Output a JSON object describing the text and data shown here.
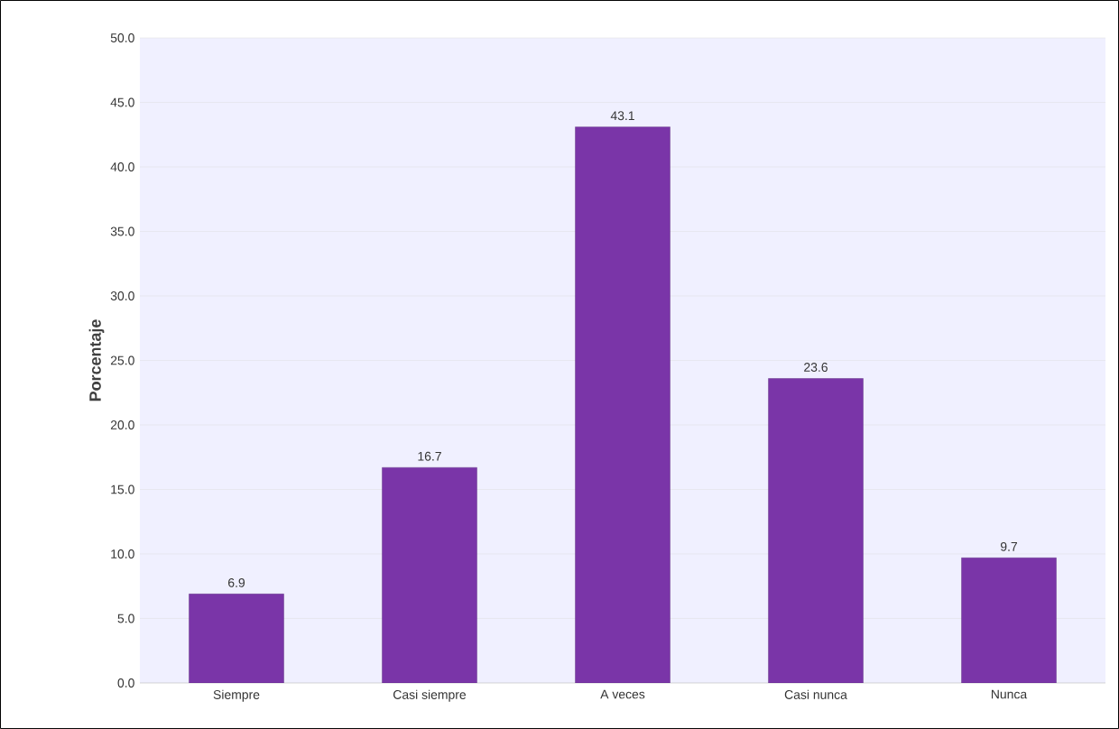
{
  "chart_data": {
    "type": "bar",
    "ylabel": "Porcentaje",
    "categories": [
      "Siempre",
      "Casi siempre",
      "A veces",
      "Casi nunca",
      "Nunca"
    ],
    "values": [
      6.9,
      16.7,
      43.1,
      23.6,
      9.7
    ],
    "value_labels": [
      "6.9",
      "16.7",
      "43.1",
      "23.6",
      "9.7"
    ],
    "color": "#7a35a8",
    "ylim": [
      0,
      50
    ],
    "yticks": [
      {
        "value": 0,
        "label": "0.0"
      },
      {
        "value": 5,
        "label": "5.0"
      },
      {
        "value": 10,
        "label": "10.0"
      },
      {
        "value": 15,
        "label": "15.0"
      },
      {
        "value": 20,
        "label": "20.0"
      },
      {
        "value": 25,
        "label": "25.0"
      },
      {
        "value": 30,
        "label": "30.0"
      },
      {
        "value": 35,
        "label": "35.0"
      },
      {
        "value": 40,
        "label": "40.0"
      },
      {
        "value": 45,
        "label": "45.0"
      },
      {
        "value": 50,
        "label": "50.0"
      }
    ],
    "grid": "y"
  }
}
